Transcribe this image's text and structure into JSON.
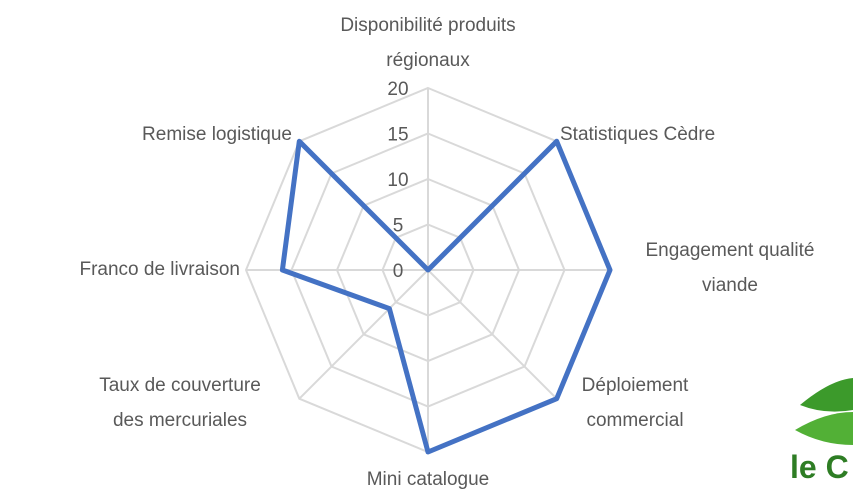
{
  "chart_data": {
    "type": "radar",
    "categories": [
      "Disponibilité produits\nrégionaux",
      "Statistiques Cèdre",
      "Engagement qualité\nviande",
      "Déploiement\ncommercial",
      "Mini catalogue",
      "Taux de couverture\ndes mercuriales",
      "Franco de livraison",
      "Remise logistique"
    ],
    "values": [
      0,
      20,
      20,
      20,
      20,
      6,
      16,
      20
    ],
    "color": "#4472c4",
    "ylim": [
      0,
      20
    ],
    "yticks": [
      0,
      5,
      10,
      15,
      20
    ],
    "grid": true
  },
  "logo": {
    "text": "le C"
  }
}
